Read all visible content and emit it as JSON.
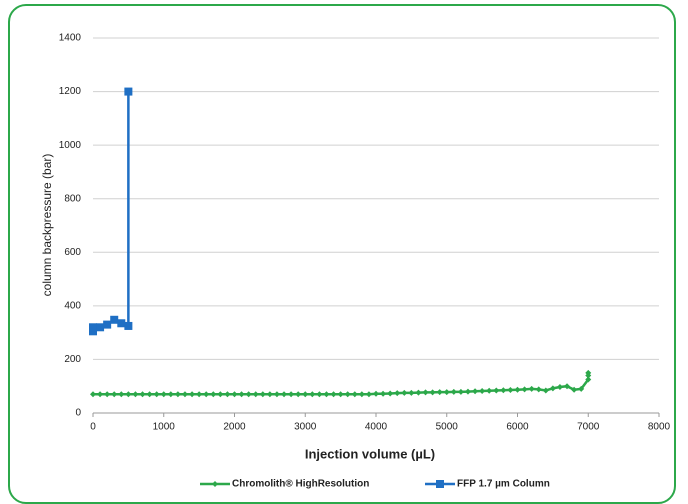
{
  "chart_data": {
    "type": "line",
    "xlabel": "Injection volume (µL)",
    "ylabel": "column backpressure (bar)",
    "xlim": [
      0,
      8000
    ],
    "xticks": [
      0,
      1000,
      2000,
      3000,
      4000,
      5000,
      6000,
      7000,
      8000
    ],
    "ylim": [
      0,
      1400
    ],
    "yticks": [
      0,
      200,
      400,
      600,
      800,
      1000,
      1200,
      1400
    ],
    "grid": true,
    "legend": "bottom",
    "series": [
      {
        "name": "Chromolith® HighResolution",
        "color": "#2ca84a",
        "marker": "diamond",
        "x": [
          0,
          100,
          200,
          300,
          400,
          500,
          600,
          700,
          800,
          900,
          1000,
          1100,
          1200,
          1300,
          1400,
          1500,
          1600,
          1700,
          1800,
          1900,
          2000,
          2100,
          2200,
          2300,
          2400,
          2500,
          2600,
          2700,
          2800,
          2900,
          3000,
          3100,
          3200,
          3300,
          3400,
          3500,
          3600,
          3700,
          3800,
          3900,
          4000,
          4100,
          4200,
          4300,
          4400,
          4500,
          4600,
          4700,
          4800,
          4900,
          5000,
          5100,
          5200,
          5300,
          5400,
          5500,
          5600,
          5700,
          5800,
          5900,
          6000,
          6100,
          6200,
          6300,
          6400,
          6500,
          6600,
          6700,
          6800,
          6900,
          7000,
          7000,
          7000
        ],
        "values": [
          70,
          70,
          70,
          70,
          70,
          70,
          70,
          70,
          70,
          70,
          70,
          70,
          70,
          70,
          70,
          70,
          70,
          70,
          70,
          70,
          70,
          70,
          70,
          70,
          70,
          70,
          70,
          70,
          70,
          70,
          70,
          70,
          70,
          70,
          70,
          70,
          70,
          70,
          70,
          70,
          72,
          72,
          73,
          74,
          75,
          75,
          76,
          77,
          77,
          78,
          78,
          79,
          79,
          80,
          81,
          82,
          83,
          84,
          85,
          86,
          87,
          88,
          90,
          88,
          84,
          92,
          97,
          100,
          87,
          90,
          125,
          140,
          150
        ]
      },
      {
        "name": "FFP 1.7 µm Column",
        "color": "#1f6fc4",
        "marker": "square",
        "x": [
          0,
          0,
          100,
          200,
          300,
          400,
          500,
          500
        ],
        "values": [
          305,
          320,
          320,
          330,
          348,
          335,
          325,
          1200
        ]
      }
    ]
  }
}
